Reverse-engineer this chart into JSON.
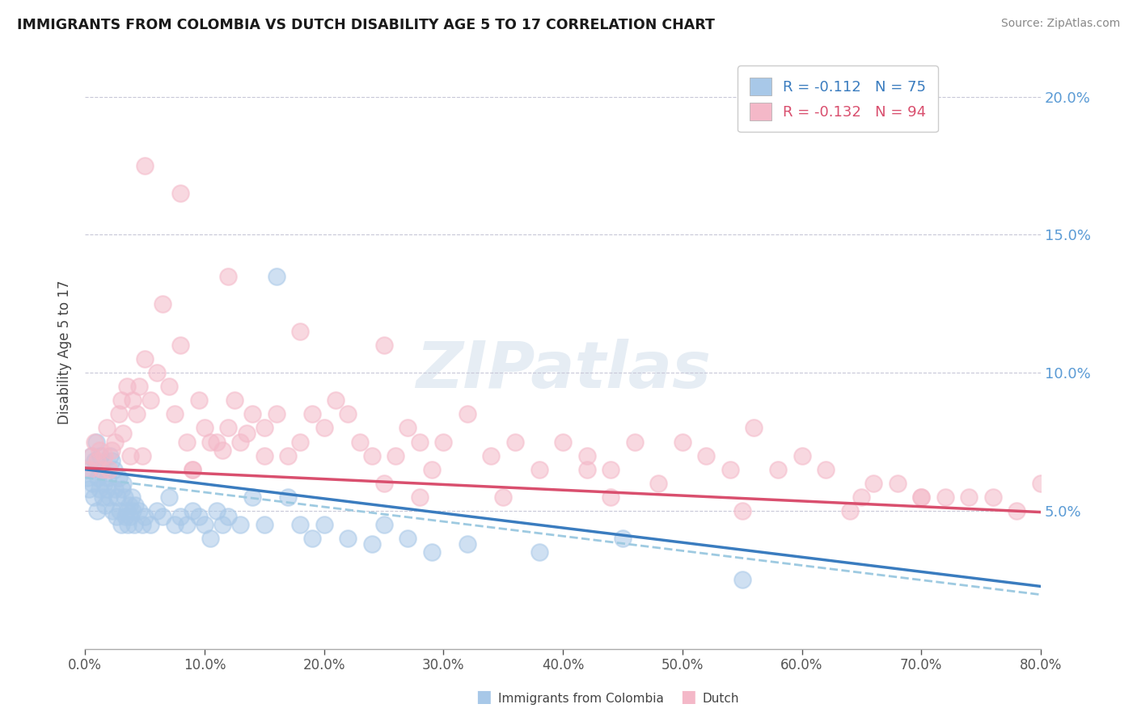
{
  "title": "IMMIGRANTS FROM COLOMBIA VS DUTCH DISABILITY AGE 5 TO 17 CORRELATION CHART",
  "source_text": "Source: ZipAtlas.com",
  "ylabel": "Disability Age 5 to 17",
  "x_ticks": [
    0.0,
    10.0,
    20.0,
    30.0,
    40.0,
    50.0,
    60.0,
    70.0,
    80.0
  ],
  "x_tick_labels": [
    "0.0%",
    "10.0%",
    "20.0%",
    "30.0%",
    "40.0%",
    "50.0%",
    "60.0%",
    "70.0%",
    "80.0%"
  ],
  "y_ticks": [
    0.0,
    5.0,
    10.0,
    15.0,
    20.0
  ],
  "y_tick_labels": [
    "",
    "5.0%",
    "10.0%",
    "15.0%",
    "20.0%"
  ],
  "xlim": [
    0.0,
    80.0
  ],
  "ylim": [
    0.0,
    21.5
  ],
  "colombia_R": -0.112,
  "colombia_N": 75,
  "dutch_R": -0.132,
  "dutch_N": 94,
  "colombia_color": "#a8c8e8",
  "dutch_color": "#f4b8c8",
  "colombia_line_color": "#3a7cbf",
  "dutch_line_color": "#d94f6e",
  "regression_line_dash_color": "#9ecae1",
  "background_color": "#ffffff",
  "grid_color": "#c8c8d8",
  "watermark_text": "ZIPatlas",
  "colombia_scatter_x": [
    0.2,
    0.3,
    0.4,
    0.5,
    0.6,
    0.7,
    0.8,
    0.9,
    1.0,
    1.1,
    1.2,
    1.3,
    1.4,
    1.5,
    1.6,
    1.7,
    1.8,
    1.9,
    2.0,
    2.1,
    2.2,
    2.3,
    2.4,
    2.5,
    2.6,
    2.7,
    2.8,
    2.9,
    3.0,
    3.1,
    3.2,
    3.3,
    3.4,
    3.5,
    3.6,
    3.7,
    3.8,
    3.9,
    4.0,
    4.1,
    4.2,
    4.5,
    4.8,
    5.0,
    5.5,
    6.0,
    6.5,
    7.0,
    7.5,
    8.0,
    8.5,
    9.0,
    9.5,
    10.0,
    10.5,
    11.0,
    11.5,
    12.0,
    13.0,
    14.0,
    15.0,
    16.0,
    17.0,
    18.0,
    19.0,
    20.0,
    22.0,
    24.0,
    25.0,
    27.0,
    29.0,
    32.0,
    38.0,
    45.0,
    55.0
  ],
  "colombia_scatter_y": [
    6.2,
    5.8,
    6.5,
    7.0,
    6.0,
    5.5,
    6.8,
    7.5,
    5.0,
    6.2,
    5.8,
    7.0,
    6.5,
    5.5,
    6.0,
    5.2,
    5.8,
    6.2,
    5.5,
    7.0,
    6.8,
    5.0,
    6.5,
    5.8,
    4.8,
    5.5,
    6.2,
    5.0,
    4.5,
    5.8,
    6.0,
    5.5,
    4.8,
    5.0,
    4.5,
    5.2,
    4.8,
    5.5,
    5.0,
    4.5,
    5.2,
    5.0,
    4.5,
    4.8,
    4.5,
    5.0,
    4.8,
    5.5,
    4.5,
    4.8,
    4.5,
    5.0,
    4.8,
    4.5,
    4.0,
    5.0,
    4.5,
    4.8,
    4.5,
    5.5,
    4.5,
    13.5,
    5.5,
    4.5,
    4.0,
    4.5,
    4.0,
    3.8,
    4.5,
    4.0,
    3.5,
    3.8,
    3.5,
    4.0,
    2.5
  ],
  "dutch_scatter_x": [
    0.3,
    0.5,
    0.8,
    1.0,
    1.2,
    1.4,
    1.6,
    1.8,
    2.0,
    2.2,
    2.5,
    2.8,
    3.0,
    3.2,
    3.5,
    3.8,
    4.0,
    4.3,
    4.5,
    4.8,
    5.0,
    5.5,
    6.0,
    6.5,
    7.0,
    7.5,
    8.0,
    8.5,
    9.0,
    9.5,
    10.0,
    10.5,
    11.0,
    11.5,
    12.0,
    12.5,
    13.0,
    13.5,
    14.0,
    15.0,
    16.0,
    17.0,
    18.0,
    19.0,
    20.0,
    21.0,
    22.0,
    23.0,
    24.0,
    25.0,
    26.0,
    27.0,
    28.0,
    29.0,
    30.0,
    32.0,
    34.0,
    36.0,
    38.0,
    40.0,
    42.0,
    44.0,
    46.0,
    48.0,
    50.0,
    52.0,
    54.0,
    56.0,
    58.0,
    60.0,
    62.0,
    64.0,
    66.0,
    68.0,
    70.0,
    72.0,
    74.0,
    76.0,
    78.0,
    80.0,
    5.0,
    8.0,
    12.0,
    18.0,
    25.0,
    35.0,
    44.0,
    55.0,
    65.0,
    70.0,
    42.0,
    28.0,
    15.0,
    9.0
  ],
  "dutch_scatter_y": [
    6.5,
    7.0,
    7.5,
    6.8,
    7.2,
    6.5,
    7.0,
    8.0,
    6.5,
    7.2,
    7.5,
    8.5,
    9.0,
    7.8,
    9.5,
    7.0,
    9.0,
    8.5,
    9.5,
    7.0,
    10.5,
    9.0,
    10.0,
    12.5,
    9.5,
    8.5,
    11.0,
    7.5,
    6.5,
    9.0,
    8.0,
    7.5,
    7.5,
    7.2,
    8.0,
    9.0,
    7.5,
    7.8,
    8.5,
    8.0,
    8.5,
    7.0,
    7.5,
    8.5,
    8.0,
    9.0,
    8.5,
    7.5,
    7.0,
    6.0,
    7.0,
    8.0,
    7.5,
    6.5,
    7.5,
    8.5,
    7.0,
    7.5,
    6.5,
    7.5,
    7.0,
    5.5,
    7.5,
    6.0,
    7.5,
    7.0,
    6.5,
    8.0,
    6.5,
    7.0,
    6.5,
    5.0,
    6.0,
    6.0,
    5.5,
    5.5,
    5.5,
    5.5,
    5.0,
    6.0,
    17.5,
    16.5,
    13.5,
    11.5,
    11.0,
    5.5,
    6.5,
    5.0,
    5.5,
    5.5,
    6.5,
    5.5,
    7.0,
    6.5
  ]
}
